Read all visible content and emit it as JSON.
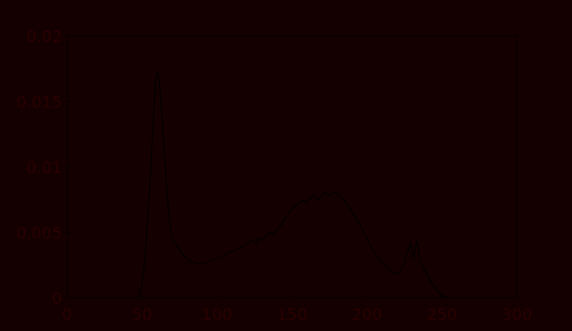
{
  "chart_data": {
    "type": "line",
    "title": "",
    "xlabel": "",
    "ylabel": "",
    "xlim": [
      0,
      300
    ],
    "ylim": [
      0,
      0.02
    ],
    "xticks": [
      0,
      50,
      100,
      150,
      200,
      250,
      300
    ],
    "yticks": [
      0,
      0.005,
      0.01,
      0.015,
      0.02
    ],
    "xtick_labels": [
      "0",
      "50",
      "100",
      "150",
      "200",
      "250",
      "300"
    ],
    "ytick_labels": [
      "0",
      "0.005",
      "0.01",
      "0.015",
      "0.02"
    ],
    "grid": false,
    "legend": "none",
    "colors": {
      "background": "#140000",
      "line": "#000000",
      "text": "#2a0000"
    },
    "series": [
      {
        "x": [
          0,
          46,
          48,
          50,
          52,
          54,
          56,
          57,
          58,
          59,
          60,
          61,
          62,
          63,
          64,
          65,
          66,
          67,
          68,
          69,
          70,
          72,
          74,
          76,
          78,
          80,
          82,
          84,
          86,
          88,
          90,
          95,
          100,
          105,
          110,
          115,
          118,
          120,
          122,
          124,
          126,
          128,
          130,
          132,
          135,
          138,
          140,
          142,
          145,
          148,
          150,
          152,
          155,
          158,
          160,
          162,
          165,
          168,
          170,
          172,
          175,
          178,
          180,
          182,
          185,
          188,
          190,
          192,
          195,
          198,
          200,
          202,
          205,
          208,
          210,
          212,
          215,
          218,
          220,
          222,
          224,
          226,
          228,
          229,
          230,
          231,
          232,
          233,
          234,
          235,
          236,
          237,
          238,
          240,
          242,
          244,
          246,
          248,
          250,
          255,
          260,
          270,
          280,
          290,
          300
        ],
        "y": [
          0,
          0,
          0.0002,
          0.001,
          0.003,
          0.0065,
          0.01,
          0.0125,
          0.0145,
          0.0165,
          0.0172,
          0.017,
          0.016,
          0.0145,
          0.0128,
          0.011,
          0.0092,
          0.0076,
          0.0063,
          0.0053,
          0.0046,
          0.0042,
          0.0038,
          0.0035,
          0.0032,
          0.003,
          0.0028,
          0.00275,
          0.0027,
          0.0026,
          0.0026,
          0.0028,
          0.003,
          0.0033,
          0.0036,
          0.0038,
          0.004,
          0.0041,
          0.0043,
          0.0045,
          0.0042,
          0.0046,
          0.0044,
          0.0047,
          0.005,
          0.0048,
          0.0052,
          0.0055,
          0.006,
          0.0065,
          0.0068,
          0.007,
          0.0073,
          0.0075,
          0.0072,
          0.0076,
          0.0078,
          0.0075,
          0.0079,
          0.008,
          0.0078,
          0.0081,
          0.0079,
          0.0078,
          0.0074,
          0.007,
          0.0066,
          0.0062,
          0.0056,
          0.005,
          0.0045,
          0.004,
          0.0035,
          0.003,
          0.0027,
          0.0025,
          0.0022,
          0.0019,
          0.0018,
          0.002,
          0.0024,
          0.0032,
          0.0038,
          0.0042,
          0.0038,
          0.003,
          0.0036,
          0.0043,
          0.004,
          0.0032,
          0.0027,
          0.0025,
          0.0022,
          0.0018,
          0.0014,
          0.001,
          0.0007,
          0.0004,
          0.0002,
          0,
          0,
          0,
          0,
          0,
          0
        ]
      }
    ]
  }
}
